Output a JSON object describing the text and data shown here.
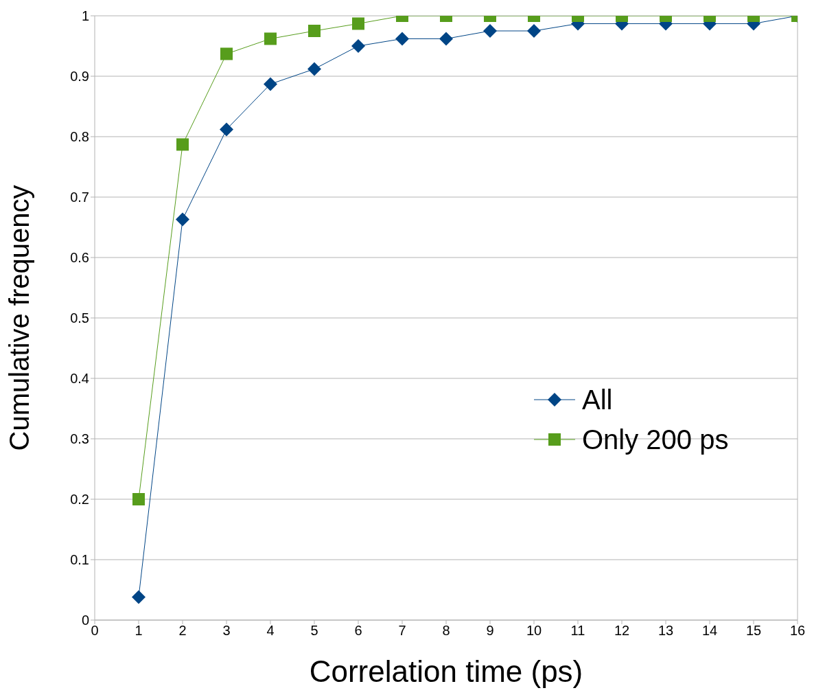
{
  "chart_data": {
    "type": "line",
    "xlabel": "Correlation time (ps)",
    "ylabel": "Cumulative frequency",
    "x": [
      1,
      2,
      3,
      4,
      5,
      6,
      7,
      8,
      9,
      10,
      11,
      12,
      13,
      14,
      15,
      16
    ],
    "series": [
      {
        "name": "All",
        "color": "#004586",
        "marker": "diamond",
        "values": [
          0.038,
          0.663,
          0.812,
          0.887,
          0.912,
          0.95,
          0.962,
          0.962,
          0.975,
          0.975,
          0.987,
          0.987,
          0.987,
          0.987,
          0.987,
          1
        ]
      },
      {
        "name": "Only 200 ps",
        "color": "#579d1c",
        "marker": "square",
        "values": [
          0.2,
          0.787,
          0.937,
          0.962,
          0.975,
          0.987,
          1,
          1,
          1,
          1,
          1,
          1,
          1,
          1,
          1,
          1
        ]
      }
    ],
    "xlim": [
      0,
      16
    ],
    "xticks": [
      0,
      1,
      2,
      3,
      4,
      5,
      6,
      7,
      8,
      9,
      10,
      11,
      12,
      13,
      14,
      15,
      16
    ],
    "ylim": [
      0,
      1
    ],
    "yticks": [
      0,
      0.1,
      0.2,
      0.3,
      0.4,
      0.5,
      0.6,
      0.7,
      0.8,
      0.9,
      1
    ],
    "grid": "y",
    "legend": "right"
  }
}
